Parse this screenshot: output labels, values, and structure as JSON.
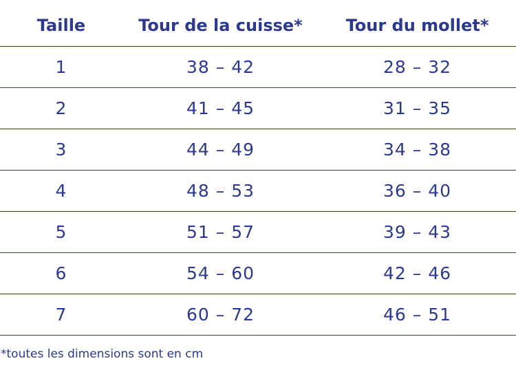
{
  "header": {
    "size": "Taille",
    "thigh": "Tour de la cuisse*",
    "calf": "Tour du mollet*"
  },
  "rows": [
    {
      "size": "1",
      "thigh": "38 – 42",
      "calf": "28 – 32"
    },
    {
      "size": "2",
      "thigh": "41 – 45",
      "calf": "31 – 35"
    },
    {
      "size": "3",
      "thigh": "44 – 49",
      "calf": "34 – 38"
    },
    {
      "size": "4",
      "thigh": "48 – 53",
      "calf": "36 – 40"
    },
    {
      "size": "5",
      "thigh": "51 – 57",
      "calf": "39 – 43"
    },
    {
      "size": "6",
      "thigh": "54 – 60",
      "calf": "42 – 46"
    },
    {
      "size": "7",
      "thigh": "60 – 72",
      "calf": "46 – 51"
    }
  ],
  "footnote": "*toutes les dimensions sont en cm",
  "colors": {
    "text": "#2b3a8c",
    "rule": "#2b3a8c",
    "background": "#ffffff"
  }
}
